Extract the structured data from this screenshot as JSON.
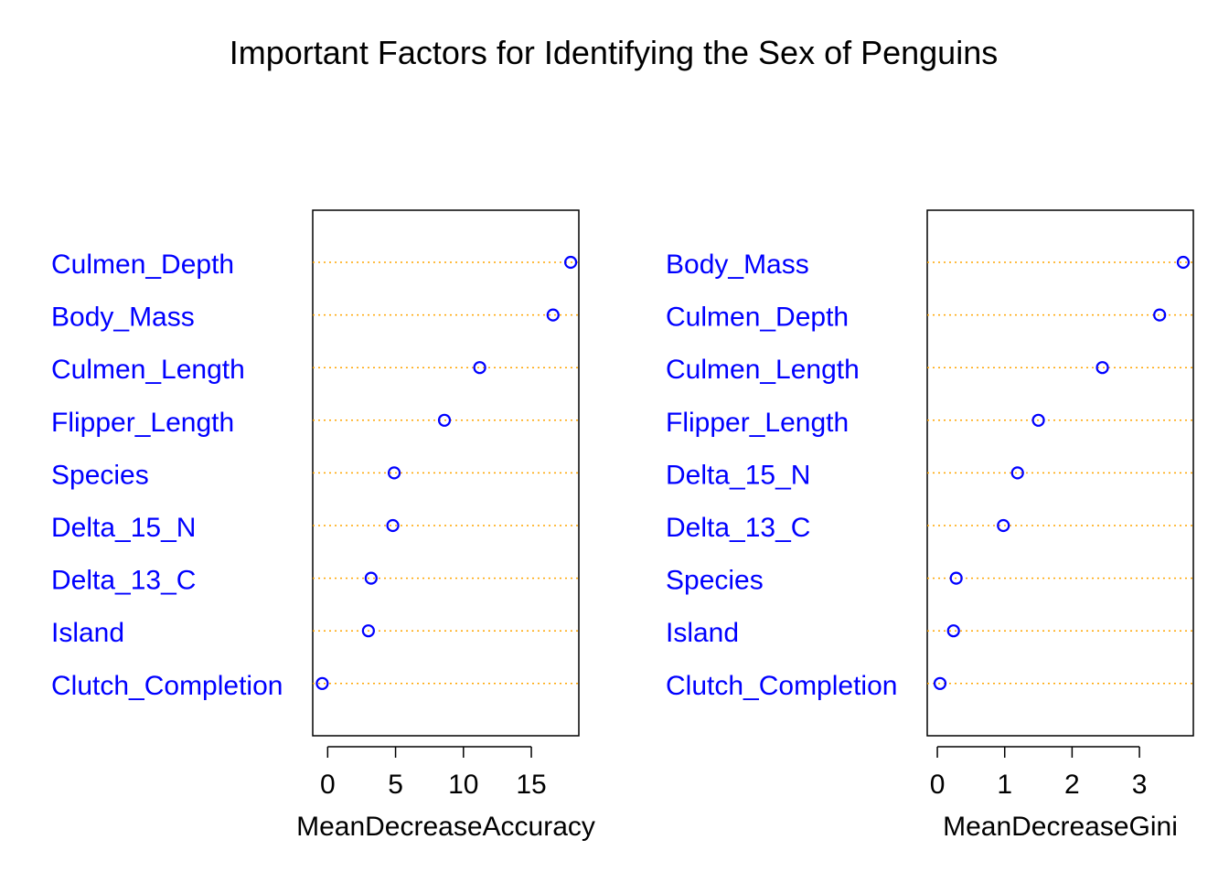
{
  "colors": {
    "label": "#0000ff",
    "point": "#0000ff",
    "guide": "#ffa500",
    "frame": "#000000",
    "text": "#000000",
    "background": "#ffffff"
  },
  "chart_data": {
    "type": "scatter",
    "title": "Important Factors for Identifying the Sex of Penguins",
    "panels": [
      {
        "xlabel": "MeanDecreaseAccuracy",
        "xlim": [
          -1.1,
          18.5
        ],
        "xticks": [
          0,
          5,
          10,
          15
        ],
        "categories": [
          "Culmen_Depth",
          "Body_Mass",
          "Culmen_Length",
          "Flipper_Length",
          "Species",
          "Delta_15_N",
          "Delta_13_C",
          "Island",
          "Clutch_Completion"
        ],
        "values": [
          17.9,
          16.6,
          11.2,
          8.6,
          4.9,
          4.8,
          3.2,
          3.0,
          -0.4
        ]
      },
      {
        "xlabel": "MeanDecreaseGini",
        "xlim": [
          -0.15,
          3.8
        ],
        "xticks": [
          0,
          1,
          2,
          3
        ],
        "categories": [
          "Body_Mass",
          "Culmen_Depth",
          "Culmen_Length",
          "Flipper_Length",
          "Delta_15_N",
          "Delta_13_C",
          "Species",
          "Island",
          "Clutch_Completion"
        ],
        "values": [
          3.65,
          3.3,
          2.45,
          1.5,
          1.19,
          0.98,
          0.28,
          0.24,
          0.04
        ]
      }
    ]
  }
}
